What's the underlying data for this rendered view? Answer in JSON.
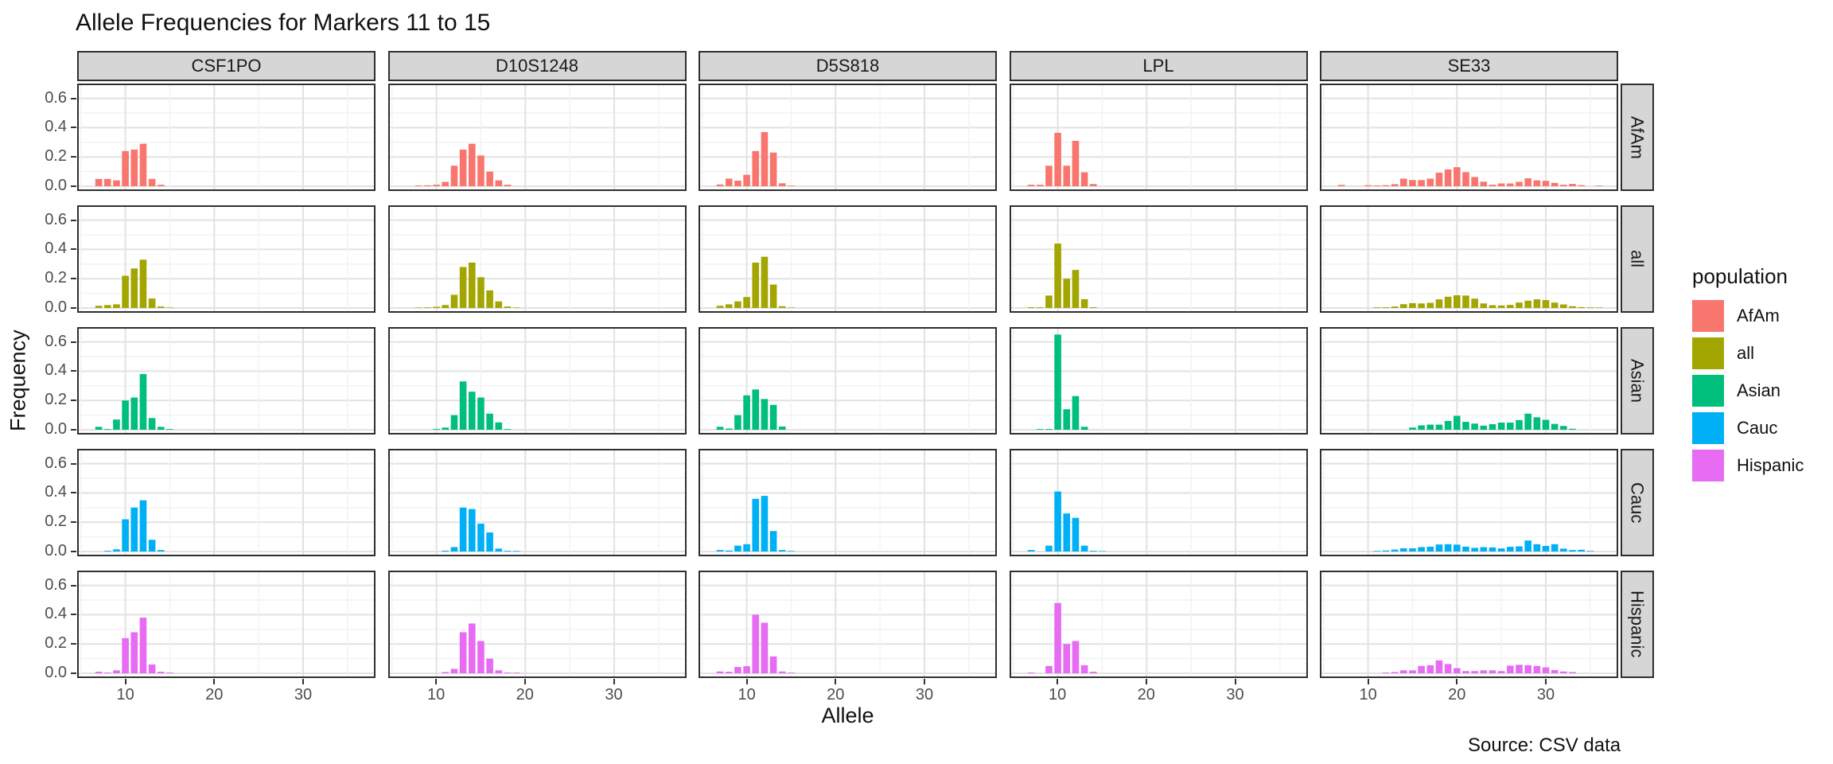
{
  "title": "Allele Frequencies for Markers 11 to 15",
  "source_note": "Source: CSV data",
  "axes": {
    "x_title": "Allele",
    "y_title": "Frequency",
    "x_ticks": [
      10,
      20,
      30
    ],
    "y_ticks": [
      "0.0",
      "0.2",
      "0.4",
      "0.6"
    ]
  },
  "legend": {
    "title": "population",
    "items": [
      {
        "label": "AfAm",
        "color": "#F8766D"
      },
      {
        "label": "all",
        "color": "#A3A500"
      },
      {
        "label": "Asian",
        "color": "#00BF7D"
      },
      {
        "label": "Cauc",
        "color": "#00B0F6"
      },
      {
        "label": "Hispanic",
        "color": "#E76BF3"
      }
    ]
  },
  "chart_data": {
    "type": "bar",
    "title": "Allele Frequencies for Markers 11 to 15",
    "xlabel": "Allele",
    "ylabel": "Frequency",
    "facet_columns": [
      "CSF1PO",
      "D10S1248",
      "D5S818",
      "LPL",
      "SE33"
    ],
    "facet_rows": [
      "AfAm",
      "all",
      "Asian",
      "Cauc",
      "Hispanic"
    ],
    "x_range": [
      4.6,
      37.8
    ],
    "y_range": [
      0,
      0.7
    ],
    "grid": true,
    "legend_position": "right",
    "palette": {
      "AfAm": "#F8766D",
      "all": "#A3A500",
      "Asian": "#00BF7D",
      "Cauc": "#00B0F6",
      "Hispanic": "#E76BF3"
    },
    "series": [
      {
        "marker": "CSF1PO",
        "population": "AfAm",
        "alleles": [
          7,
          8,
          9,
          10,
          11,
          12,
          13,
          14
        ],
        "frequencies": [
          0.05,
          0.05,
          0.04,
          0.24,
          0.25,
          0.29,
          0.05,
          0.01
        ]
      },
      {
        "marker": "CSF1PO",
        "population": "all",
        "alleles": [
          7,
          8,
          9,
          10,
          11,
          12,
          13,
          14,
          15
        ],
        "frequencies": [
          0.015,
          0.02,
          0.025,
          0.22,
          0.27,
          0.33,
          0.065,
          0.01,
          0.003
        ]
      },
      {
        "marker": "CSF1PO",
        "population": "Asian",
        "alleles": [
          7,
          8,
          9,
          10,
          11,
          12,
          13,
          14,
          15
        ],
        "frequencies": [
          0.02,
          0.005,
          0.07,
          0.2,
          0.22,
          0.38,
          0.08,
          0.02,
          0.005
        ]
      },
      {
        "marker": "CSF1PO",
        "population": "Cauc",
        "alleles": [
          8,
          9,
          10,
          11,
          12,
          13,
          14
        ],
        "frequencies": [
          0.005,
          0.015,
          0.22,
          0.3,
          0.35,
          0.08,
          0.01
        ]
      },
      {
        "marker": "CSF1PO",
        "population": "Hispanic",
        "alleles": [
          7,
          8,
          9,
          10,
          11,
          12,
          13,
          14,
          15
        ],
        "frequencies": [
          0.01,
          0.005,
          0.02,
          0.24,
          0.28,
          0.38,
          0.06,
          0.01,
          0.005
        ]
      },
      {
        "marker": "D10S1248",
        "population": "AfAm",
        "alleles": [
          8,
          9,
          10,
          11,
          12,
          13,
          14,
          15,
          16,
          17,
          18
        ],
        "frequencies": [
          0.005,
          0.006,
          0.01,
          0.03,
          0.14,
          0.25,
          0.29,
          0.21,
          0.1,
          0.04,
          0.01
        ]
      },
      {
        "marker": "D10S1248",
        "population": "all",
        "alleles": [
          8,
          9,
          10,
          11,
          12,
          13,
          14,
          15,
          16,
          17,
          18,
          19
        ],
        "frequencies": [
          0.003,
          0.004,
          0.008,
          0.02,
          0.09,
          0.28,
          0.31,
          0.21,
          0.12,
          0.045,
          0.01,
          0.003
        ]
      },
      {
        "marker": "D10S1248",
        "population": "Asian",
        "alleles": [
          10,
          11,
          12,
          13,
          14,
          15,
          16,
          17,
          18
        ],
        "frequencies": [
          0.005,
          0.015,
          0.1,
          0.33,
          0.26,
          0.22,
          0.11,
          0.05,
          0.005
        ]
      },
      {
        "marker": "D10S1248",
        "population": "Cauc",
        "alleles": [
          11,
          12,
          13,
          14,
          15,
          16,
          17,
          18,
          19
        ],
        "frequencies": [
          0.006,
          0.03,
          0.3,
          0.29,
          0.19,
          0.13,
          0.02,
          0.005,
          0.004
        ]
      },
      {
        "marker": "D10S1248",
        "population": "Hispanic",
        "alleles": [
          11,
          12,
          13,
          14,
          15,
          16,
          17,
          18,
          19
        ],
        "frequencies": [
          0.008,
          0.03,
          0.28,
          0.34,
          0.22,
          0.1,
          0.02,
          0.005,
          0.004
        ]
      },
      {
        "marker": "D5S818",
        "population": "AfAm",
        "alleles": [
          7,
          8,
          9,
          10,
          11,
          12,
          13,
          14,
          15
        ],
        "frequencies": [
          0.012,
          0.052,
          0.038,
          0.078,
          0.24,
          0.37,
          0.23,
          0.02,
          0.004
        ]
      },
      {
        "marker": "D5S818",
        "population": "all",
        "alleles": [
          7,
          8,
          9,
          10,
          11,
          12,
          13,
          14,
          15
        ],
        "frequencies": [
          0.015,
          0.025,
          0.045,
          0.075,
          0.31,
          0.35,
          0.16,
          0.012,
          0.003
        ]
      },
      {
        "marker": "D5S818",
        "population": "Asian",
        "alleles": [
          7,
          8,
          9,
          10,
          11,
          12,
          13,
          14
        ],
        "frequencies": [
          0.02,
          0.008,
          0.1,
          0.235,
          0.275,
          0.21,
          0.17,
          0.022
        ]
      },
      {
        "marker": "D5S818",
        "population": "Cauc",
        "alleles": [
          7,
          8,
          9,
          10,
          11,
          12,
          13,
          14,
          15
        ],
        "frequencies": [
          0.01,
          0.007,
          0.04,
          0.05,
          0.36,
          0.38,
          0.14,
          0.01,
          0.004
        ]
      },
      {
        "marker": "D5S818",
        "population": "Hispanic",
        "alleles": [
          7,
          8,
          9,
          10,
          11,
          12,
          13,
          14,
          15
        ],
        "frequencies": [
          0.012,
          0.01,
          0.043,
          0.048,
          0.4,
          0.345,
          0.115,
          0.012,
          0.005
        ]
      },
      {
        "marker": "LPL",
        "population": "AfAm",
        "alleles": [
          7,
          8,
          9,
          10,
          11,
          12,
          13,
          14
        ],
        "frequencies": [
          0.01,
          0.01,
          0.14,
          0.365,
          0.14,
          0.31,
          0.095,
          0.015
        ]
      },
      {
        "marker": "LPL",
        "population": "all",
        "alleles": [
          7,
          8,
          9,
          10,
          11,
          12,
          13,
          14
        ],
        "frequencies": [
          0.005,
          0.005,
          0.085,
          0.44,
          0.2,
          0.26,
          0.06,
          0.005
        ]
      },
      {
        "marker": "LPL",
        "population": "Asian",
        "alleles": [
          8,
          9,
          10,
          11,
          12,
          13
        ],
        "frequencies": [
          0.005,
          0.005,
          0.65,
          0.14,
          0.23,
          0.02
        ]
      },
      {
        "marker": "LPL",
        "population": "Cauc",
        "alleles": [
          7,
          9,
          10,
          11,
          12,
          13,
          14,
          15
        ],
        "frequencies": [
          0.01,
          0.04,
          0.41,
          0.26,
          0.23,
          0.04,
          0.005,
          0.003
        ]
      },
      {
        "marker": "LPL",
        "population": "Hispanic",
        "alleles": [
          7,
          9,
          10,
          11,
          12,
          13,
          14
        ],
        "frequencies": [
          0.005,
          0.05,
          0.48,
          0.2,
          0.22,
          0.055,
          0.01
        ]
      },
      {
        "marker": "SE33",
        "population": "AfAm",
        "alleles": [
          7,
          10,
          11,
          12,
          13,
          14,
          15,
          16,
          17,
          18,
          19,
          20,
          21,
          22,
          23,
          24,
          25,
          26,
          27,
          28,
          29,
          30,
          31,
          32,
          33,
          34,
          36
        ],
        "frequencies": [
          0.009,
          0.007,
          0.005,
          0.007,
          0.014,
          0.052,
          0.042,
          0.042,
          0.052,
          0.092,
          0.115,
          0.13,
          0.096,
          0.063,
          0.031,
          0.01,
          0.019,
          0.019,
          0.03,
          0.054,
          0.04,
          0.037,
          0.023,
          0.01,
          0.016,
          0.007,
          0.004
        ]
      },
      {
        "marker": "SE33",
        "population": "all",
        "alleles": [
          11,
          12,
          13,
          14,
          15,
          16,
          17,
          18,
          19,
          20,
          21,
          22,
          23,
          24,
          25,
          26,
          27,
          28,
          29,
          30,
          31,
          32,
          33,
          34,
          35,
          36
        ],
        "frequencies": [
          0.004,
          0.005,
          0.01,
          0.026,
          0.033,
          0.031,
          0.035,
          0.059,
          0.077,
          0.087,
          0.085,
          0.064,
          0.031,
          0.019,
          0.017,
          0.021,
          0.037,
          0.05,
          0.059,
          0.054,
          0.037,
          0.024,
          0.012,
          0.006,
          0.004,
          0.003
        ]
      },
      {
        "marker": "SE33",
        "population": "Asian",
        "alleles": [
          15,
          16,
          17,
          18,
          19,
          20,
          21,
          22,
          23,
          24,
          25,
          26,
          27,
          28,
          29,
          30,
          31,
          32,
          33
        ],
        "frequencies": [
          0.015,
          0.03,
          0.035,
          0.035,
          0.06,
          0.095,
          0.054,
          0.042,
          0.028,
          0.038,
          0.049,
          0.049,
          0.066,
          0.11,
          0.085,
          0.068,
          0.04,
          0.026,
          0.007
        ]
      },
      {
        "marker": "SE33",
        "population": "Cauc",
        "alleles": [
          11,
          12,
          13,
          14,
          15,
          16,
          17,
          18,
          19,
          20,
          21,
          22,
          23,
          24,
          25,
          26,
          27,
          28,
          29,
          30,
          31,
          32,
          33,
          34,
          35
        ],
        "frequencies": [
          0.004,
          0.007,
          0.013,
          0.022,
          0.022,
          0.03,
          0.033,
          0.048,
          0.05,
          0.047,
          0.033,
          0.025,
          0.03,
          0.028,
          0.021,
          0.032,
          0.035,
          0.075,
          0.05,
          0.038,
          0.05,
          0.02,
          0.01,
          0.012,
          0.004
        ]
      },
      {
        "marker": "SE33",
        "population": "Hispanic",
        "alleles": [
          12,
          13,
          14,
          15,
          16,
          17,
          18,
          19,
          20,
          21,
          22,
          23,
          24,
          25,
          26,
          27,
          28,
          29,
          30,
          31,
          32,
          33
        ],
        "frequencies": [
          0.005,
          0.008,
          0.02,
          0.02,
          0.05,
          0.055,
          0.088,
          0.063,
          0.035,
          0.015,
          0.015,
          0.02,
          0.02,
          0.015,
          0.052,
          0.058,
          0.055,
          0.05,
          0.04,
          0.022,
          0.012,
          0.008
        ]
      }
    ]
  }
}
